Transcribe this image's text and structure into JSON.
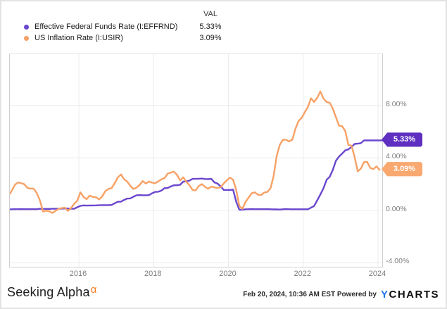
{
  "legend": {
    "val_header": "VAL",
    "items": [
      {
        "label": "Effective Federal Funds Rate (I:EFFRND)",
        "value": "5.33%"
      },
      {
        "label": "US Inflation Rate (I:USIR)",
        "value": "3.09%"
      }
    ]
  },
  "footer": {
    "brand": "Seeking Alpha",
    "brand_sup": "α",
    "timestamp_powered": "Feb 20, 2024, 10:36 AM EST Powered by",
    "ycharts_y": "Y",
    "ycharts_rest": "CHARTS"
  },
  "colors": {
    "effr_line": "#6a47cf",
    "effr_badge": "#5e2fc0",
    "inflation_line": "#f7a166",
    "inflation_badge": "#f9a870",
    "gridline": "#ececec",
    "ycharts_blue": "#1b74e8",
    "alpha_orange": "#ff7a1a"
  },
  "chart_data": {
    "type": "line",
    "title": "",
    "xlabel": "",
    "ylabel": "",
    "grid": true,
    "legend_position": "top-left",
    "axis_side": "right",
    "xlim_years": [
      2014.155,
      2024.113
    ],
    "ylim": [
      -4.3,
      11.9
    ],
    "y_ticks": [
      8,
      4,
      0,
      -4
    ],
    "y_tick_labels": [
      "8.00%",
      "4.00%",
      "0.00%",
      "-4.00%"
    ],
    "x_tick_years": [
      2016,
      2018,
      2020,
      2022,
      2024
    ],
    "x_tick_labels": [
      "2016",
      "2018",
      "2020",
      "2022",
      "2024"
    ],
    "start_month": "2014-02",
    "series": [
      {
        "name": "Effective Federal Funds Rate (I:EFFRND)",
        "badge": "5.33%",
        "end_value": 5.33,
        "values": [
          0.07,
          0.08,
          0.09,
          0.09,
          0.1,
          0.09,
          0.09,
          0.09,
          0.09,
          0.09,
          0.12,
          0.11,
          0.11,
          0.11,
          0.12,
          0.12,
          0.13,
          0.13,
          0.14,
          0.14,
          0.12,
          0.12,
          0.24,
          0.34,
          0.38,
          0.36,
          0.37,
          0.37,
          0.38,
          0.39,
          0.4,
          0.4,
          0.4,
          0.41,
          0.54,
          0.65,
          0.66,
          0.79,
          0.9,
          0.91,
          1.04,
          1.15,
          1.16,
          1.15,
          1.15,
          1.16,
          1.3,
          1.41,
          1.42,
          1.51,
          1.69,
          1.7,
          1.82,
          1.91,
          1.91,
          1.95,
          2.19,
          2.2,
          2.27,
          2.4,
          2.4,
          2.41,
          2.42,
          2.39,
          2.38,
          2.4,
          2.13,
          2.04,
          1.83,
          1.55,
          1.55,
          1.55,
          1.58,
          0.65,
          0.05,
          0.05,
          0.08,
          0.09,
          0.1,
          0.09,
          0.09,
          0.09,
          0.09,
          0.09,
          0.08,
          0.07,
          0.07,
          0.06,
          0.08,
          0.1,
          0.09,
          0.08,
          0.08,
          0.08,
          0.08,
          0.08,
          0.08,
          0.2,
          0.33,
          0.77,
          1.21,
          1.68,
          2.33,
          2.56,
          3.08,
          3.78,
          4.1,
          4.33,
          4.57,
          4.65,
          4.83,
          5.06,
          5.08,
          5.12,
          5.33,
          5.33,
          5.33,
          5.33,
          5.33,
          5.33,
          5.33
        ]
      },
      {
        "name": "US Inflation Rate (I:USIR)",
        "badge": "3.09%",
        "end_value": 3.09,
        "values": [
          1.13,
          1.51,
          1.95,
          2.13,
          2.07,
          1.99,
          1.7,
          1.66,
          1.66,
          1.32,
          0.76,
          -0.09,
          -0.03,
          -0.07,
          -0.2,
          -0.04,
          0.12,
          0.17,
          0.2,
          -0.04,
          0.17,
          0.5,
          0.73,
          1.37,
          1.02,
          0.85,
          1.13,
          1.02,
          1.0,
          0.83,
          1.06,
          1.46,
          1.64,
          1.69,
          2.07,
          2.5,
          2.74,
          2.38,
          2.2,
          1.87,
          1.63,
          1.73,
          1.94,
          2.23,
          2.04,
          2.2,
          2.11,
          2.07,
          2.21,
          2.36,
          2.46,
          2.8,
          2.87,
          2.95,
          2.7,
          2.28,
          2.52,
          2.18,
          1.91,
          1.55,
          1.52,
          1.86,
          2.0,
          1.79,
          1.65,
          1.81,
          1.75,
          1.71,
          1.76,
          2.05,
          2.29,
          2.49,
          2.33,
          1.54,
          0.33,
          0.12,
          0.65,
          0.99,
          1.31,
          1.37,
          1.18,
          1.17,
          1.36,
          1.4,
          1.68,
          2.62,
          4.16,
          4.99,
          5.39,
          5.37,
          5.25,
          5.39,
          6.22,
          6.81,
          7.04,
          7.48,
          7.87,
          8.54,
          8.26,
          8.58,
          9.06,
          8.52,
          8.26,
          8.2,
          7.75,
          7.11,
          6.45,
          6.41,
          6.04,
          4.98,
          4.93,
          4.05,
          2.97,
          3.18,
          3.67,
          3.7,
          3.24,
          3.14,
          3.35,
          3.09
        ]
      }
    ]
  }
}
